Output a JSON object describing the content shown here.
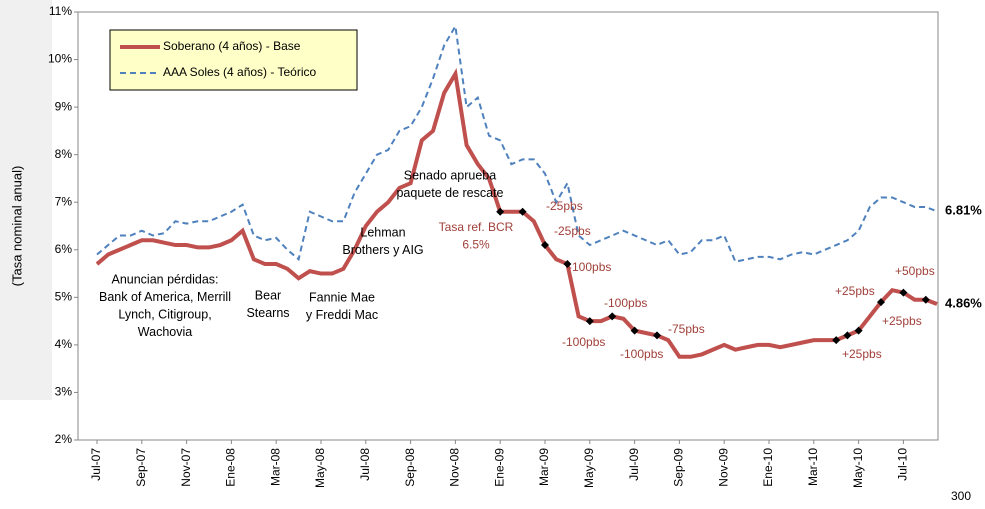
{
  "chart_data": {
    "type": "line",
    "y_label": "(Tasa nominal anual)",
    "categories": [
      "Jul-07",
      null,
      null,
      null,
      "Sep-07",
      null,
      null,
      null,
      "Nov-07",
      null,
      null,
      null,
      "Ene-08",
      null,
      null,
      null,
      "Mar-08",
      null,
      null,
      null,
      "May-08",
      null,
      null,
      null,
      "Jul-08",
      null,
      null,
      null,
      "Sep-08",
      null,
      null,
      null,
      "Nov-08",
      null,
      null,
      null,
      "Ene-09",
      null,
      null,
      null,
      "Mar-09",
      null,
      null,
      null,
      "May-09",
      null,
      null,
      null,
      "Jul-09",
      null,
      null,
      null,
      "Sep-09",
      null,
      null,
      null,
      "Nov-09",
      null,
      null,
      null,
      "Ene-10",
      null,
      null,
      null,
      "Mar-10",
      null,
      null,
      null,
      "May-10",
      null,
      null,
      null,
      "Jul-10",
      null,
      null,
      null
    ],
    "series": [
      {
        "name": "Soberano (4 años) - Base",
        "color": "#c0504d",
        "dash": false,
        "values": [
          5.7,
          5.9,
          6.0,
          6.1,
          6.2,
          6.2,
          6.15,
          6.1,
          6.1,
          6.05,
          6.05,
          6.1,
          6.2,
          6.4,
          5.8,
          5.7,
          5.7,
          5.6,
          5.4,
          5.55,
          5.5,
          5.5,
          5.6,
          6.0,
          6.5,
          6.8,
          7.0,
          7.3,
          7.4,
          8.3,
          8.5,
          9.3,
          9.7,
          8.2,
          7.8,
          7.5,
          6.8,
          6.8,
          6.8,
          6.6,
          6.1,
          5.8,
          5.7,
          4.6,
          4.5,
          4.5,
          4.6,
          4.55,
          4.3,
          4.25,
          4.2,
          4.1,
          3.75,
          3.75,
          3.8,
          3.9,
          4.0,
          3.9,
          3.95,
          4.0,
          4.0,
          3.95,
          4.0,
          4.05,
          4.1,
          4.1,
          4.1,
          4.2,
          4.3,
          4.6,
          4.9,
          5.15,
          5.1,
          4.95,
          4.95,
          4.86
        ],
        "value_labels": [
          null,
          null,
          null,
          null,
          null,
          null,
          null,
          null,
          null,
          null,
          null,
          null,
          null,
          null,
          null,
          null,
          null,
          null,
          null,
          null,
          null,
          null,
          null,
          null,
          null,
          null,
          null,
          null,
          null,
          null,
          null,
          null,
          null,
          null,
          null,
          null,
          null,
          null,
          null,
          null,
          null,
          null,
          null,
          null,
          null,
          null,
          null,
          null,
          null,
          null,
          null,
          null,
          null,
          null,
          null,
          null,
          null,
          null,
          null,
          null,
          null,
          null,
          null,
          null,
          null,
          null,
          null,
          null,
          null,
          null,
          null,
          null,
          null,
          null,
          null,
          "4.86%"
        ]
      },
      {
        "name": "AAA Soles (4 años)  - Teórico",
        "color": "#4f81bd",
        "dash": true,
        "values": [
          5.9,
          6.1,
          6.3,
          6.3,
          6.4,
          6.3,
          6.35,
          6.6,
          6.55,
          6.6,
          6.6,
          6.7,
          6.8,
          6.95,
          6.3,
          6.2,
          6.25,
          6.0,
          5.8,
          6.8,
          6.7,
          6.6,
          6.6,
          7.2,
          7.6,
          8.0,
          8.1,
          8.5,
          8.6,
          9.0,
          9.6,
          10.3,
          10.7,
          9.0,
          9.2,
          8.4,
          8.3,
          7.8,
          7.9,
          7.9,
          7.6,
          7.0,
          7.4,
          6.3,
          6.1,
          6.2,
          6.3,
          6.4,
          6.3,
          6.2,
          6.1,
          6.2,
          5.9,
          5.95,
          6.2,
          6.2,
          6.3,
          5.75,
          5.8,
          5.85,
          5.85,
          5.8,
          5.9,
          5.95,
          5.9,
          6.0,
          6.1,
          6.2,
          6.4,
          6.9,
          7.1,
          7.1,
          7.0,
          6.9,
          6.9,
          6.81
        ],
        "value_labels": [
          null,
          null,
          null,
          null,
          null,
          null,
          null,
          null,
          null,
          null,
          null,
          null,
          null,
          null,
          null,
          null,
          null,
          null,
          null,
          null,
          null,
          null,
          null,
          null,
          null,
          null,
          null,
          null,
          null,
          null,
          null,
          null,
          null,
          null,
          null,
          null,
          null,
          null,
          null,
          null,
          null,
          null,
          null,
          null,
          null,
          null,
          null,
          null,
          null,
          null,
          null,
          null,
          null,
          null,
          null,
          null,
          null,
          null,
          null,
          null,
          null,
          null,
          null,
          null,
          null,
          null,
          null,
          null,
          null,
          null,
          null,
          null,
          null,
          null,
          null,
          "6.81%"
        ]
      }
    ],
    "ylim": [
      2,
      11
    ],
    "yticks": [
      {
        "value": 2,
        "label": "2%"
      },
      {
        "value": 3,
        "label": "3%"
      },
      {
        "value": 4,
        "label": "4%"
      },
      {
        "value": 5,
        "label": "5%"
      },
      {
        "value": 6,
        "label": "6%"
      },
      {
        "value": 7,
        "label": "7%"
      },
      {
        "value": 8,
        "label": "8%"
      },
      {
        "value": 9,
        "label": "9%"
      },
      {
        "value": 10,
        "label": "10%"
      },
      {
        "value": 11,
        "label": "11%"
      }
    ],
    "events": [
      [
        "Anuncian pérdidas:",
        "Bank of America, Merrill",
        "Lynch, Citigroup,",
        "Wachovia"
      ],
      [
        "Bear",
        "Stearns"
      ],
      [
        "Fannie Mae",
        "y Freddi Mac"
      ],
      [
        "Lehman",
        "Brothers y AIG"
      ],
      [
        "Senado aprueba",
        "paquete de rescate"
      ],
      [
        "Tasa ref. BCR",
        "6.5%"
      ]
    ],
    "rate_labels": [
      "-25pbs",
      "-25pbs",
      "-100pbs",
      "-100pbs",
      "-100pbs",
      "-75pbs",
      "-100pbs",
      "+25pbs",
      "+25pbs",
      "+25pbs",
      "+50pbs"
    ],
    "page_number": "300"
  }
}
